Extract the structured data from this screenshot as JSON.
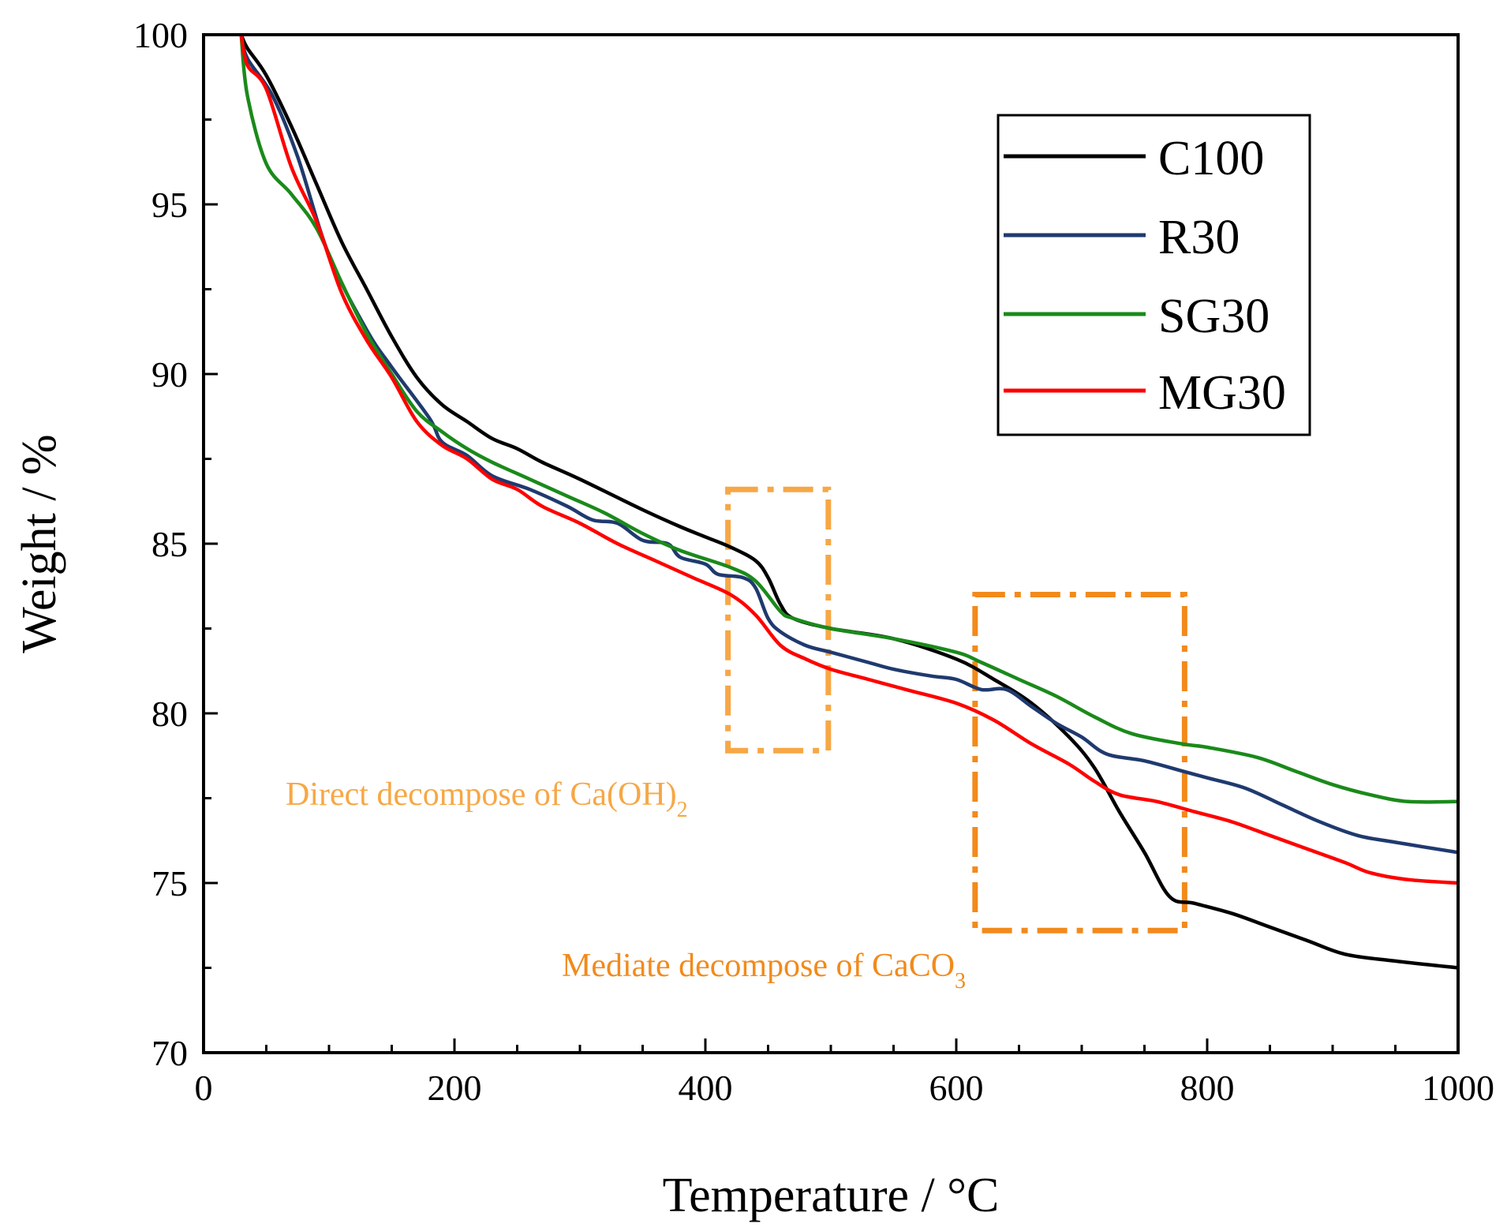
{
  "chart_data": {
    "type": "line",
    "title": "",
    "xlabel": "Temperature / °C",
    "ylabel": "Weight / %",
    "xlim": [
      0,
      1000
    ],
    "ylim": [
      70,
      100
    ],
    "xticks": [
      0,
      200,
      400,
      600,
      800,
      1000
    ],
    "yticks": [
      70,
      75,
      80,
      85,
      90,
      95,
      100
    ],
    "x_minor_step": 50,
    "y_minor_step": 2.5,
    "grid": false,
    "legend_position": "top-right",
    "series": [
      {
        "name": "C100",
        "color": "#000000",
        "points": [
          [
            30,
            100
          ],
          [
            35,
            99.6
          ],
          [
            50,
            98.8
          ],
          [
            70,
            97.3
          ],
          [
            90,
            95.6
          ],
          [
            110,
            93.9
          ],
          [
            130,
            92.5
          ],
          [
            150,
            91.1
          ],
          [
            170,
            89.9
          ],
          [
            190,
            89.1
          ],
          [
            210,
            88.6
          ],
          [
            230,
            88.1
          ],
          [
            250,
            87.8
          ],
          [
            270,
            87.4
          ],
          [
            300,
            86.9
          ],
          [
            350,
            86.0
          ],
          [
            380,
            85.5
          ],
          [
            400,
            85.2
          ],
          [
            420,
            84.9
          ],
          [
            440,
            84.5
          ],
          [
            450,
            84.0
          ],
          [
            460,
            83.2
          ],
          [
            470,
            82.8
          ],
          [
            500,
            82.5
          ],
          [
            550,
            82.2
          ],
          [
            600,
            81.6
          ],
          [
            630,
            81.0
          ],
          [
            660,
            80.3
          ],
          [
            690,
            79.3
          ],
          [
            710,
            78.4
          ],
          [
            730,
            77.1
          ],
          [
            750,
            75.9
          ],
          [
            770,
            74.6
          ],
          [
            790,
            74.4
          ],
          [
            820,
            74.1
          ],
          [
            850,
            73.7
          ],
          [
            880,
            73.3
          ],
          [
            910,
            72.9
          ],
          [
            950,
            72.7
          ],
          [
            1000,
            72.5
          ]
        ]
      },
      {
        "name": "R30",
        "color": "#1f3a6e",
        "points": [
          [
            30,
            100
          ],
          [
            35,
            99.3
          ],
          [
            55,
            98.2
          ],
          [
            75,
            96.4
          ],
          [
            100,
            93.5
          ],
          [
            130,
            91.3
          ],
          [
            150,
            90.2
          ],
          [
            180,
            88.7
          ],
          [
            190,
            88.0
          ],
          [
            210,
            87.6
          ],
          [
            230,
            87.0
          ],
          [
            260,
            86.6
          ],
          [
            290,
            86.1
          ],
          [
            310,
            85.7
          ],
          [
            330,
            85.6
          ],
          [
            350,
            85.1
          ],
          [
            370,
            85.0
          ],
          [
            380,
            84.6
          ],
          [
            400,
            84.4
          ],
          [
            410,
            84.1
          ],
          [
            430,
            84.0
          ],
          [
            440,
            83.7
          ],
          [
            450,
            82.8
          ],
          [
            460,
            82.4
          ],
          [
            480,
            82.0
          ],
          [
            500,
            81.8
          ],
          [
            530,
            81.5
          ],
          [
            550,
            81.3
          ],
          [
            580,
            81.1
          ],
          [
            600,
            81.0
          ],
          [
            620,
            80.7
          ],
          [
            640,
            80.7
          ],
          [
            660,
            80.2
          ],
          [
            680,
            79.7
          ],
          [
            700,
            79.3
          ],
          [
            720,
            78.8
          ],
          [
            750,
            78.6
          ],
          [
            780,
            78.3
          ],
          [
            800,
            78.1
          ],
          [
            830,
            77.8
          ],
          [
            860,
            77.3
          ],
          [
            890,
            76.8
          ],
          [
            920,
            76.4
          ],
          [
            950,
            76.2
          ],
          [
            1000,
            75.9
          ]
        ]
      },
      {
        "name": "SG30",
        "color": "#1a8a1a",
        "points": [
          [
            30,
            100
          ],
          [
            35,
            98.2
          ],
          [
            50,
            96.2
          ],
          [
            70,
            95.3
          ],
          [
            90,
            94.3
          ],
          [
            110,
            92.7
          ],
          [
            130,
            91.2
          ],
          [
            150,
            90.0
          ],
          [
            170,
            88.9
          ],
          [
            190,
            88.3
          ],
          [
            210,
            87.8
          ],
          [
            230,
            87.4
          ],
          [
            260,
            86.9
          ],
          [
            290,
            86.4
          ],
          [
            320,
            85.9
          ],
          [
            350,
            85.3
          ],
          [
            380,
            84.8
          ],
          [
            420,
            84.3
          ],
          [
            440,
            83.9
          ],
          [
            460,
            83.0
          ],
          [
            470,
            82.8
          ],
          [
            500,
            82.5
          ],
          [
            550,
            82.2
          ],
          [
            600,
            81.8
          ],
          [
            620,
            81.5
          ],
          [
            650,
            81.0
          ],
          [
            680,
            80.5
          ],
          [
            710,
            79.9
          ],
          [
            740,
            79.4
          ],
          [
            780,
            79.1
          ],
          [
            800,
            79.0
          ],
          [
            840,
            78.7
          ],
          [
            870,
            78.3
          ],
          [
            900,
            77.9
          ],
          [
            930,
            77.6
          ],
          [
            960,
            77.4
          ],
          [
            1000,
            77.4
          ]
        ]
      },
      {
        "name": "MG30",
        "color": "#ff0000",
        "points": [
          [
            30,
            100
          ],
          [
            35,
            99.1
          ],
          [
            50,
            98.4
          ],
          [
            70,
            96.1
          ],
          [
            90,
            94.5
          ],
          [
            110,
            92.4
          ],
          [
            130,
            91.0
          ],
          [
            150,
            89.9
          ],
          [
            170,
            88.6
          ],
          [
            190,
            87.9
          ],
          [
            210,
            87.5
          ],
          [
            230,
            86.9
          ],
          [
            250,
            86.6
          ],
          [
            270,
            86.1
          ],
          [
            300,
            85.6
          ],
          [
            330,
            85.0
          ],
          [
            360,
            84.5
          ],
          [
            390,
            84.0
          ],
          [
            420,
            83.5
          ],
          [
            440,
            82.9
          ],
          [
            460,
            82.0
          ],
          [
            480,
            81.6
          ],
          [
            500,
            81.3
          ],
          [
            530,
            81.0
          ],
          [
            560,
            80.7
          ],
          [
            600,
            80.3
          ],
          [
            630,
            79.8
          ],
          [
            660,
            79.1
          ],
          [
            690,
            78.5
          ],
          [
            710,
            78.0
          ],
          [
            730,
            77.6
          ],
          [
            760,
            77.4
          ],
          [
            790,
            77.1
          ],
          [
            820,
            76.8
          ],
          [
            850,
            76.4
          ],
          [
            880,
            76.0
          ],
          [
            910,
            75.6
          ],
          [
            930,
            75.3
          ],
          [
            960,
            75.1
          ],
          [
            1000,
            75.0
          ]
        ]
      }
    ],
    "annotations": [
      {
        "name": "annotation-ca-oh2",
        "text": "Direct decompose of Ca(OH)",
        "subscript": "2",
        "color": "#f7a745",
        "box_range": {
          "x": [
            418,
            498
          ],
          "y": [
            78.9,
            86.6
          ]
        }
      },
      {
        "name": "annotation-caco3",
        "text": "Mediate decompose of CaCO",
        "subscript": "3",
        "color": "#f28a1c",
        "box_range": {
          "x": [
            615,
            782
          ],
          "y": [
            73.6,
            83.5
          ]
        }
      }
    ]
  }
}
